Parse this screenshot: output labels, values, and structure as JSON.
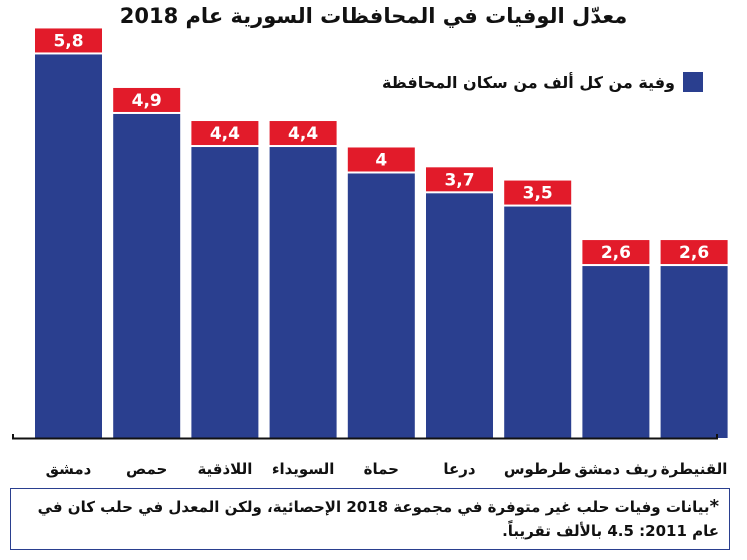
{
  "chart_data": {
    "type": "bar",
    "title": "معدّل الوفيات في المحافظات السورية عام 2018",
    "categories": [
      "دمشق",
      "حمص",
      "اللاذقية",
      "السويداء",
      "حماة",
      "درعا",
      "طرطوس",
      "ريف دمشق",
      "القنيطرة"
    ],
    "values": [
      5.8,
      4.9,
      4.4,
      4.4,
      4,
      3.7,
      3.5,
      2.6,
      2.6
    ],
    "value_labels": [
      "5,8",
      "4,9",
      "4,4",
      "4,4",
      "4",
      "3,7",
      "3,5",
      "2,6",
      "2,6"
    ],
    "series": [
      {
        "name": "وفية من كل ألف من سكان المحافظة",
        "values": [
          5.8,
          4.9,
          4.4,
          4.4,
          4,
          3.7,
          3.5,
          2.6,
          2.6
        ]
      }
    ],
    "ylim": [
      0,
      6.2
    ],
    "legend_position": "top-right",
    "grid": false,
    "bar_color": "#2a3f8f",
    "label_color": "#e21b2a"
  },
  "footnote": {
    "mark": "*",
    "text": "بيانات وفيات حلب غير متوفرة في مجموعة 2018 الإحصائية، ولكن المعدل في حلب كان في عام 2011: 4.5 بالألف تقريباً."
  }
}
